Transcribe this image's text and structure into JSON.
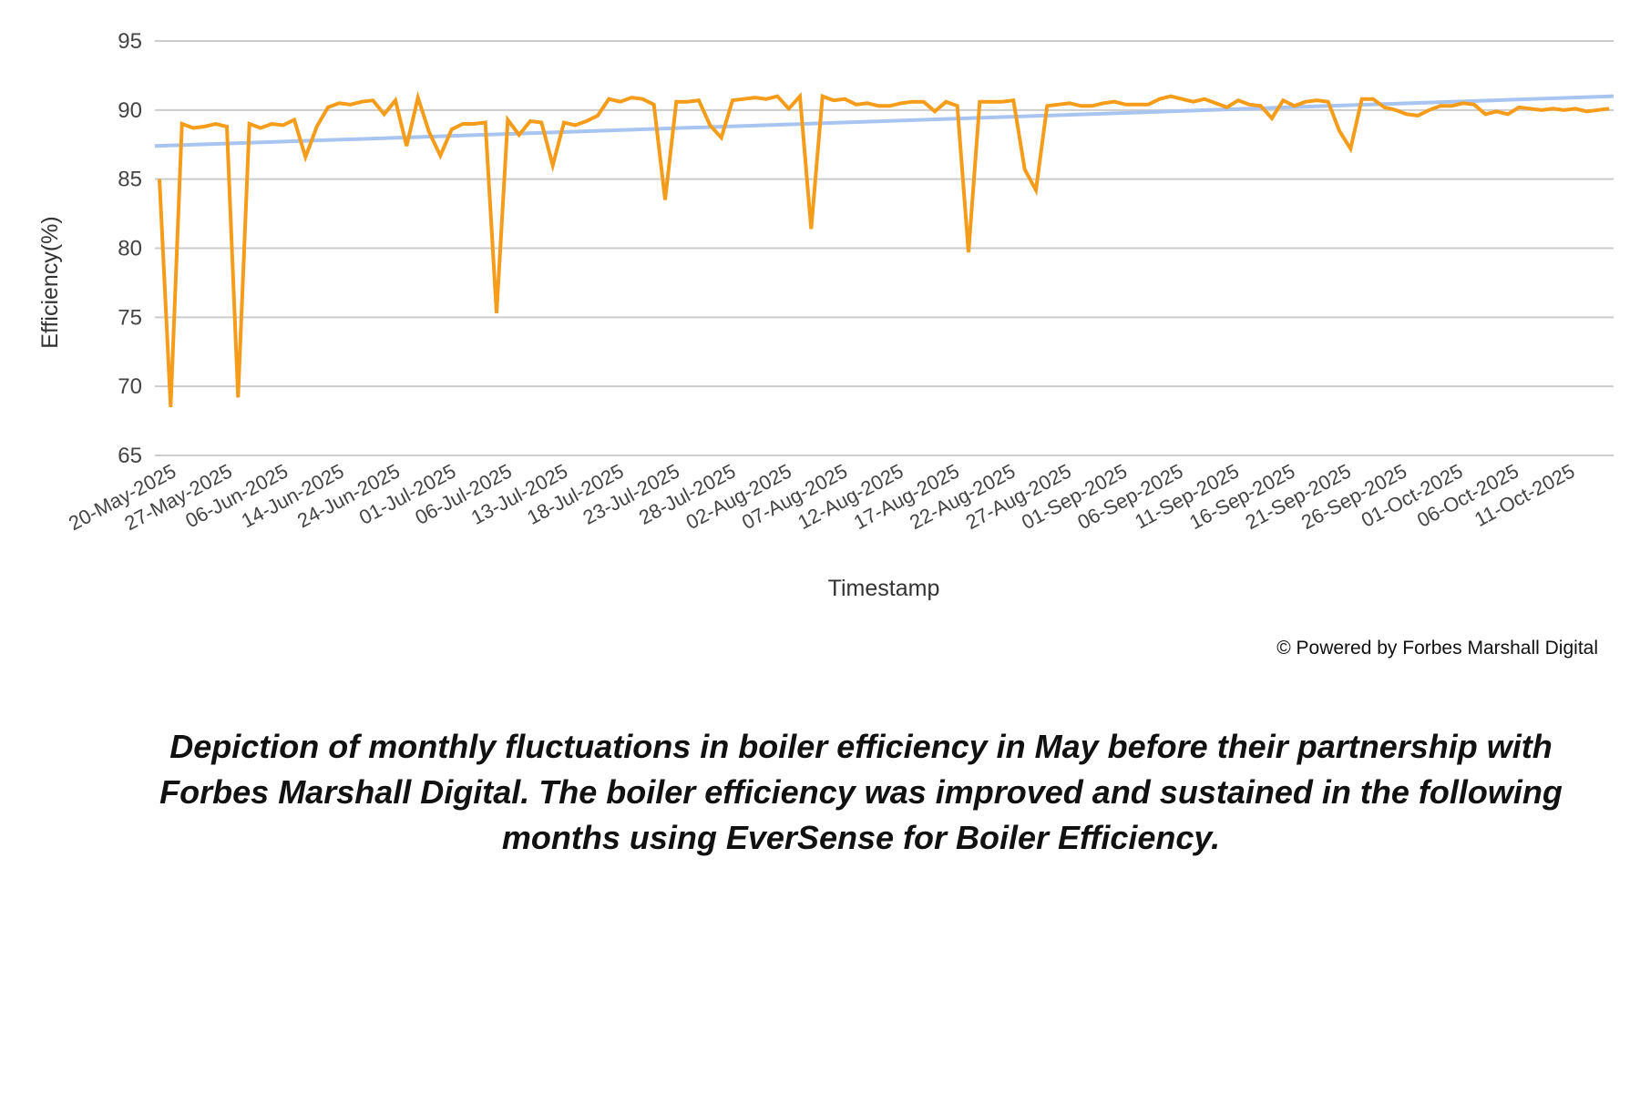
{
  "chart_data": {
    "type": "line",
    "title": "",
    "xlabel": "Timestamp",
    "ylabel": "Efficiency(%)",
    "ylim": [
      65,
      95
    ],
    "yticks": [
      65,
      70,
      75,
      80,
      85,
      90,
      95
    ],
    "grid": true,
    "x_tick_labels": [
      "20-May-2025",
      "27-May-2025",
      "06-Jun-2025",
      "14-Jun-2025",
      "24-Jun-2025",
      "01-Jul-2025",
      "06-Jul-2025",
      "13-Jul-2025",
      "18-Jul-2025",
      "23-Jul-2025",
      "28-Jul-2025",
      "02-Aug-2025",
      "07-Aug-2025",
      "12-Aug-2025",
      "17-Aug-2025",
      "22-Aug-2025",
      "27-Aug-2025",
      "01-Sep-2025",
      "06-Sep-2025",
      "11-Sep-2025",
      "16-Sep-2025",
      "21-Sep-2025",
      "26-Sep-2025",
      "01-Oct-2025",
      "06-Oct-2025",
      "11-Oct-2025"
    ],
    "series": [
      {
        "name": "Efficiency",
        "color": "#f59c1a",
        "values": [
          85,
          68.5,
          89,
          88.7,
          88.8,
          89,
          88.8,
          69.2,
          89,
          88.7,
          89,
          88.9,
          89.3,
          86.6,
          88.8,
          90.2,
          90.5,
          90.4,
          90.6,
          90.7,
          89.7,
          90.7,
          87.4,
          90.9,
          88.4,
          86.7,
          88.6,
          89,
          89,
          89.1,
          75.3,
          89.3,
          88.2,
          89.2,
          89.1,
          86,
          89.1,
          88.9,
          89.2,
          89.6,
          90.8,
          90.6,
          90.9,
          90.8,
          90.4,
          83.5,
          90.6,
          90.6,
          90.7,
          88.9,
          88,
          90.7,
          90.8,
          90.9,
          90.8,
          91,
          90.1,
          91,
          81.4,
          91,
          90.7,
          90.8,
          90.4,
          90.5,
          90.3,
          90.3,
          90.5,
          90.6,
          90.6,
          89.9,
          90.6,
          90.3,
          79.7,
          90.6,
          90.6,
          90.6,
          90.7,
          85.7,
          84.2,
          90.3,
          90.4,
          90.5,
          90.3,
          90.3,
          90.5,
          90.6,
          90.4,
          90.4,
          90.4,
          90.8,
          91,
          90.8,
          90.6,
          90.8,
          90.5,
          90.2,
          90.7,
          90.4,
          90.3,
          89.4,
          90.7,
          90.3,
          90.6,
          90.7,
          90.6,
          88.5,
          87.2,
          90.8,
          90.8,
          90.2,
          90,
          89.7,
          89.6,
          90,
          90.3,
          90.3,
          90.5,
          90.4,
          89.7,
          89.9,
          89.7,
          90.2,
          90.1,
          90,
          90.1,
          90,
          90.1,
          89.9,
          90,
          90.1
        ]
      },
      {
        "name": "Trendline",
        "color": "#a8c4f0",
        "type": "linear",
        "start": 87.4,
        "end": 91.0
      }
    ]
  },
  "footer": "© Powered by Forbes Marshall Digital",
  "caption": "Depiction of monthly fluctuations in boiler efficiency in May before their partnership with Forbes Marshall Digital. The boiler efficiency was improved and sustained in the following months using EverSense for Boiler Efficiency."
}
